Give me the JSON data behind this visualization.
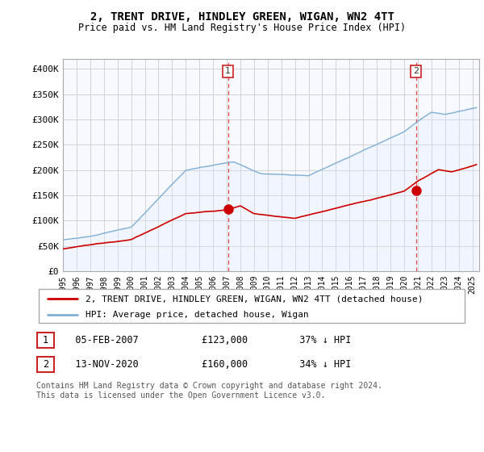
{
  "title": "2, TRENT DRIVE, HINDLEY GREEN, WIGAN, WN2 4TT",
  "subtitle": "Price paid vs. HM Land Registry's House Price Index (HPI)",
  "ylim": [
    0,
    420000
  ],
  "yticks": [
    0,
    50000,
    100000,
    150000,
    200000,
    250000,
    300000,
    350000,
    400000
  ],
  "ytick_labels": [
    "£0",
    "£50K",
    "£100K",
    "£150K",
    "£200K",
    "£250K",
    "£300K",
    "£350K",
    "£400K"
  ],
  "hpi_color": "#7fafd4",
  "hpi_fill_color": "#ddeeff",
  "price_color": "#cc0000",
  "sale1_date": 2007.09,
  "sale1_price": 123000,
  "sale2_date": 2020.87,
  "sale2_price": 160000,
  "legend_property": "2, TRENT DRIVE, HINDLEY GREEN, WIGAN, WN2 4TT (detached house)",
  "legend_hpi": "HPI: Average price, detached house, Wigan",
  "table_rows": [
    {
      "num": "1",
      "date": "05-FEB-2007",
      "price": "£123,000",
      "note": "37% ↓ HPI"
    },
    {
      "num": "2",
      "date": "13-NOV-2020",
      "price": "£160,000",
      "note": "34% ↓ HPI"
    }
  ],
  "footer": "Contains HM Land Registry data © Crown copyright and database right 2024.\nThis data is licensed under the Open Government Licence v3.0.",
  "background_color": "#ffffff",
  "grid_color": "#cccccc"
}
